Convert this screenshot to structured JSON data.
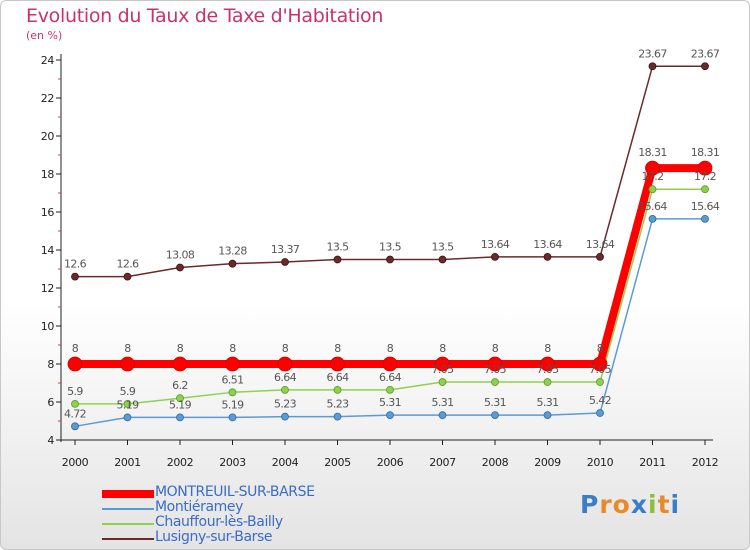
{
  "header": {
    "title": "Evolution du Taux de Taxe d'Habitation",
    "subtitle": "(en %)"
  },
  "chart_data": {
    "type": "line",
    "title": "Evolution du Taux de Taxe d'Habitation",
    "ylabel": "(en %)",
    "xlabel": "",
    "x": [
      "2000",
      "2001",
      "2002",
      "2003",
      "2004",
      "2005",
      "2006",
      "2007",
      "2008",
      "2009",
      "2010",
      "2011",
      "2012"
    ],
    "ylim": [
      4,
      24
    ],
    "yticks": [
      4,
      6,
      8,
      10,
      12,
      14,
      16,
      18,
      20,
      22,
      24
    ],
    "grid": false,
    "legend_position": "bottom-left",
    "series": [
      {
        "name": "MONTREUIL-SUR-BARSE",
        "color": "#ff0000",
        "values": [
          8,
          8,
          8,
          8,
          8,
          8,
          8,
          8,
          8,
          8,
          8,
          18.31,
          18.31
        ],
        "labels": [
          "8",
          "8",
          "8",
          "8",
          "8",
          "8",
          "8",
          "8",
          "8",
          "8",
          "8",
          "18.31",
          "18.31"
        ]
      },
      {
        "name": "Montiéramey",
        "color": "#5b9bd5",
        "values": [
          4.72,
          5.19,
          5.19,
          5.19,
          5.23,
          5.23,
          5.31,
          5.31,
          5.31,
          5.31,
          5.42,
          15.64,
          15.64
        ],
        "labels": [
          "4.72",
          "5.19",
          "5.19",
          "5.19",
          "5.23",
          "5.23",
          "5.31",
          "5.31",
          "5.31",
          "5.31",
          "5.42",
          "15.64",
          "15.64"
        ]
      },
      {
        "name": "Chauffour-lès-Bailly",
        "color": "#8fd14f",
        "values": [
          5.9,
          5.9,
          6.2,
          6.51,
          6.64,
          6.64,
          6.64,
          7.05,
          7.05,
          7.05,
          7.05,
          17.2,
          17.2
        ],
        "labels": [
          "5.9",
          "5.9",
          "6.2",
          "6.51",
          "6.64",
          "6.64",
          "6.64",
          "7.05",
          "7.05",
          "7.05",
          "7.05",
          "17.2",
          "17.2"
        ]
      },
      {
        "name": "Lusigny-sur-Barse",
        "color": "#6b2a2a",
        "values": [
          12.6,
          12.6,
          13.08,
          13.28,
          13.37,
          13.5,
          13.5,
          13.5,
          13.64,
          13.64,
          13.64,
          23.67,
          23.67
        ],
        "labels": [
          "12.6",
          "12.6",
          "13.08",
          "13.28",
          "13.37",
          "13.5",
          "13.5",
          "13.5",
          "13.64",
          "13.64",
          "13.64",
          "23.67",
          "23.67"
        ]
      }
    ]
  },
  "legend": {
    "items": [
      {
        "label": "MONTREUIL-SUR-BARSE",
        "color": "#ff0000"
      },
      {
        "label": "Montiéramey",
        "color": "#5b9bd5"
      },
      {
        "label": "Chauffour-lès-Bailly",
        "color": "#8fd14f"
      },
      {
        "label": "Lusigny-sur-Barse",
        "color": "#6b2a2a"
      }
    ]
  },
  "logo": {
    "text": "Proxiti"
  }
}
